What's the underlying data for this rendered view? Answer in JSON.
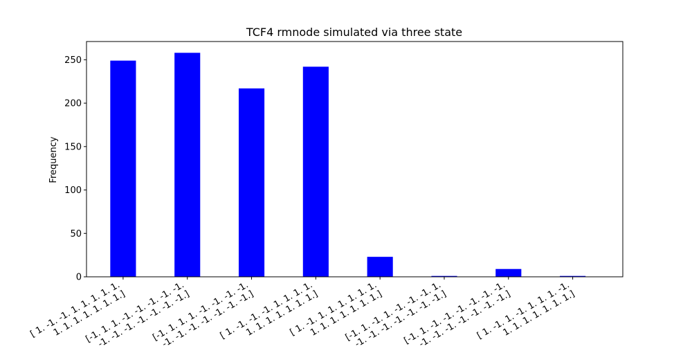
{
  "chart_data": {
    "type": "bar",
    "title": "TCF4 rmnode simulated via three state",
    "xlabel": "",
    "ylabel": "Frequency",
    "ylim": [
      0,
      271
    ],
    "yticks": [
      0,
      50,
      100,
      150,
      200,
      250
    ],
    "bar_color": "#0000ff",
    "grid": false,
    "categories": [
      [
        "[ 1. -1. -1. 1. 1. 1. 1. 1.",
        " 1. 1. 1. 1. 1. 1. 1.]"
      ],
      [
        "[-1. 1. 1. -1. -1. -1. -1. -1.",
        "-1. -1. -1. -1. -1. -1. -1.]"
      ],
      [
        "[-1. 1. 1. 1. -1. -1. -1. -1.",
        "-1. -1. -1. -1. -1. -1. -1.]"
      ],
      [
        "[ 1. -1. -1. -1. 1. 1. 1. 1.",
        " 1. 1. 1. 1. 1. 1. 1.]"
      ],
      [
        "[ 1. -1. 1. 1. 1. 1. 1. 1.",
        " 1. 1. 1. 1. 1. 1. 1.]"
      ],
      [
        "[-1. 1. -1. 1. -1. -1. -1. 1.",
        "-1. -1. -1. -1. -1. -1. -1.]"
      ],
      [
        "[-1. 1. -1. -1. -1. -1. -1. -1.",
        "-1. -1. -1. -1. -1. -1. -1.]"
      ],
      [
        "[ 1. -1. 1. -1. 1. 1. 1. -1.",
        " 1. 1. 1. 1. 1. 1. 1.]"
      ]
    ],
    "values": [
      249,
      258,
      217,
      242,
      23,
      1,
      9,
      1
    ]
  }
}
